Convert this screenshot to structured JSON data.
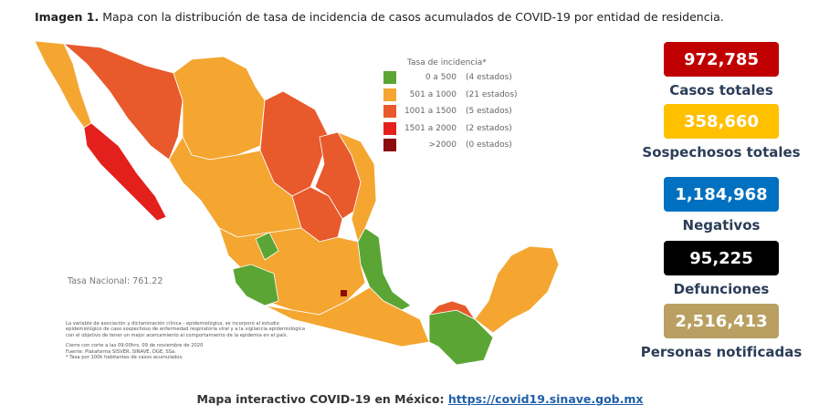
{
  "title": {
    "bold": "Imagen 1.",
    "text": "Mapa con la distribución de tasa de incidencia de casos acumulados de COVID-19 por entidad de residencia."
  },
  "legend": {
    "title": "Tasa de incidencia*",
    "items": [
      {
        "range": "0 a 500",
        "count": "(4 estados)",
        "color": "#5ba534"
      },
      {
        "range": "501 a 1000",
        "count": "(21 estados)",
        "color": "#f4a631"
      },
      {
        "range": "1001 a 1500",
        "count": "(5 estados)",
        "color": "#e8592b"
      },
      {
        "range": "1501 a 2000",
        "count": "(2 estados)",
        "color": "#e3201b"
      },
      {
        "range": ">2000",
        "count": "(0 estados)",
        "color": "#8b0d0d"
      }
    ]
  },
  "national_rate": "Tasa Nacional: 761.22",
  "notes": [
    "La variable de asociación y dictaminación clínica - epidemiológica, se incorporó al estudio",
    "epidemiológico de caso sospechoso de enfermedad respiratoria viral y a la vigilancia epidemiológica",
    "con el objetivo de tener un mejor acercamiento al comportamiento de la epidemia en el país.",
    "Cierre con corte a las 09:00hrs, 09 de noviembre de 2020",
    "Fuente: Plataforma SISVER, SINAVE, DGE, SSa.",
    "* Tasa por 100k habitantes de casos acumulados."
  ],
  "stats": [
    {
      "value": "972,785",
      "label": "Casos totales",
      "color": "#c00000"
    },
    {
      "value": "358,660",
      "label": "Sospechosos totales",
      "color": "#ffc000"
    },
    {
      "value": "1,184,968",
      "label": "Negativos",
      "color": "#0070c0"
    },
    {
      "value": "95,225",
      "label": "Defunciones",
      "color": "#000000"
    },
    {
      "value": "2,516,413",
      "label": "Personas notificadas",
      "color": "#b9a062"
    }
  ],
  "footer": {
    "text": "Mapa interactivo COVID-19 en México:",
    "link": "https://covid19.sinave.gob.mx"
  }
}
